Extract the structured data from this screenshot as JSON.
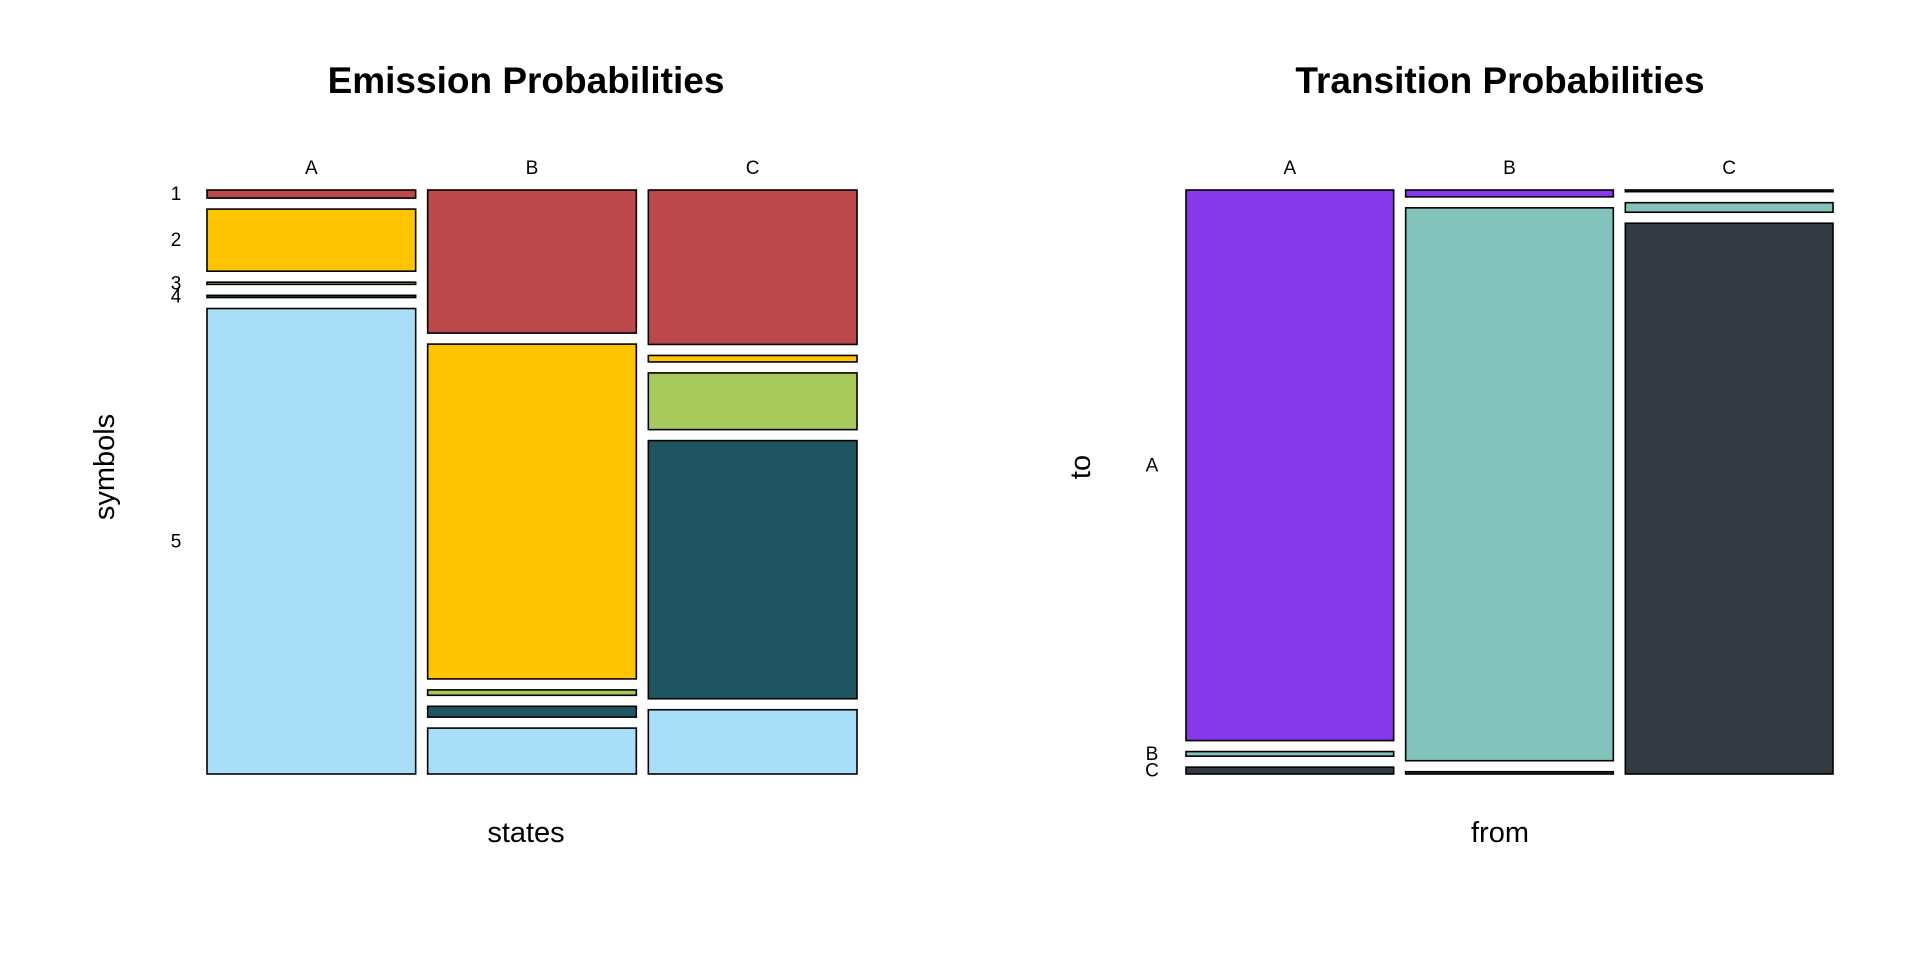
{
  "chart_data": [
    {
      "type": "mosaic",
      "title": "Emission Probabilities",
      "xlabel": "states",
      "ylabel": "symbols",
      "categories": [
        "A",
        "B",
        "C"
      ],
      "segments": [
        "1",
        "2",
        "3",
        "4",
        "5"
      ],
      "values": [
        [
          0.015,
          0.115,
          0.004,
          0.004,
          0.862
        ],
        [
          0.265,
          0.62,
          0.01,
          0.02,
          0.085
        ],
        [
          0.286,
          0.012,
          0.105,
          0.478,
          0.119
        ]
      ],
      "colors": [
        "#BB484B",
        "#FFC300",
        "#A8CA5C",
        "#1F5561",
        "#A8DEF7"
      ]
    },
    {
      "type": "mosaic",
      "title": "Transition Probabilities",
      "xlabel": "from",
      "ylabel": "to",
      "categories": [
        "A",
        "B",
        "C"
      ],
      "segments": [
        "A",
        "B",
        "C"
      ],
      "values": [
        [
          0.965,
          0.008,
          0.012
        ],
        [
          0.012,
          0.97,
          0.004
        ],
        [
          0.003,
          0.017,
          0.98
        ]
      ],
      "colors": [
        "#8539EB",
        "#84C2BC",
        "#353A42"
      ]
    }
  ]
}
